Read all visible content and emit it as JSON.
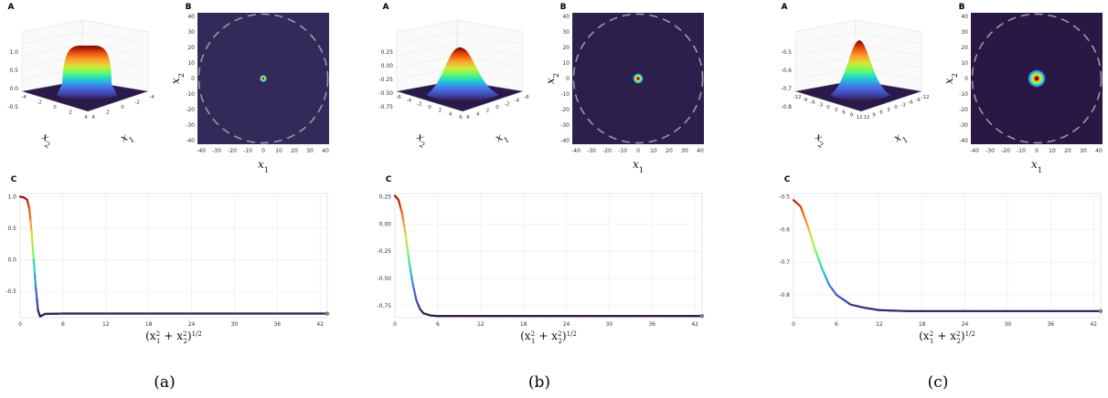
{
  "panels": [
    {
      "caption": "(a)",
      "letters": {
        "a": "A",
        "b": "B",
        "c": "C"
      },
      "surface_zticks": [
        "1.0",
        "0.5",
        "0.0",
        "-0.5"
      ],
      "surface_x2_ticks": [
        "-4",
        "-2",
        "0",
        "2",
        "4"
      ],
      "surface_x1_ticks": [
        "-4",
        "-2",
        "0",
        "2",
        "4"
      ],
      "heat_ticks": [
        "40",
        "30",
        "20",
        "10",
        "0",
        "-10",
        "-20",
        "-30",
        "-40"
      ],
      "heat_xticks": [
        "-40",
        "-30",
        "-20",
        "-10",
        "0",
        "10",
        "20",
        "30",
        "40"
      ],
      "spot_radius_units": 1.5,
      "spot_glow_units": 2.5,
      "chart_data": {
        "type": "line",
        "profile": "plateau",
        "xlim": [
          0,
          43
        ],
        "ylim": [
          -0.92,
          1.05
        ],
        "xticks": [
          "0",
          "6",
          "12",
          "18",
          "24",
          "30",
          "36",
          "42"
        ],
        "yticks": [
          {
            "value": 1.0,
            "label": "1.0"
          },
          {
            "value": 0.5,
            "label": "0.5"
          },
          {
            "value": 0.0,
            "label": "0.0"
          },
          {
            "value": -0.5,
            "label": "-0.5"
          }
        ],
        "points": [
          [
            0,
            1.0
          ],
          [
            0.5,
            0.99
          ],
          [
            1.0,
            0.95
          ],
          [
            1.3,
            0.8
          ],
          [
            1.6,
            0.45
          ],
          [
            1.9,
            0.0
          ],
          [
            2.2,
            -0.45
          ],
          [
            2.5,
            -0.8
          ],
          [
            2.8,
            -0.9
          ],
          [
            3.5,
            -0.86
          ],
          [
            6,
            -0.855
          ],
          [
            43,
            -0.855
          ]
        ],
        "end_value": -0.855
      }
    },
    {
      "caption": "(b)",
      "letters": {
        "a": "A",
        "b": "B",
        "c": "C"
      },
      "surface_zticks": [
        "0.25",
        "0.00",
        "-0.25",
        "-0.50",
        "-0.75"
      ],
      "surface_x2_ticks": [
        "-6",
        "-4",
        "-2",
        "0",
        "2",
        "4",
        "6"
      ],
      "surface_x1_ticks": [
        "-6",
        "-4",
        "-2",
        "0",
        "2",
        "4",
        "6"
      ],
      "heat_ticks": [
        "40",
        "30",
        "20",
        "10",
        "0",
        "-10",
        "-20",
        "-30",
        "-40"
      ],
      "heat_xticks": [
        "-40",
        "-30",
        "-20",
        "-10",
        "0",
        "10",
        "20",
        "30",
        "40"
      ],
      "spot_radius_units": 2,
      "spot_glow_units": 3.5,
      "chart_data": {
        "type": "line",
        "profile": "gaussian",
        "xlim": [
          0,
          43
        ],
        "ylim": [
          -0.86,
          0.28
        ],
        "xticks": [
          "0",
          "6",
          "12",
          "18",
          "24",
          "30",
          "36",
          "42"
        ],
        "yticks": [
          {
            "value": 0.25,
            "label": "0.25"
          },
          {
            "value": 0.0,
            "label": "0.00"
          },
          {
            "value": -0.25,
            "label": "-0.25"
          },
          {
            "value": -0.5,
            "label": "-0.50"
          },
          {
            "value": -0.75,
            "label": "-0.75"
          }
        ],
        "points": [
          [
            0,
            0.26
          ],
          [
            0.5,
            0.22
          ],
          [
            1,
            0.1
          ],
          [
            1.5,
            -0.1
          ],
          [
            2,
            -0.35
          ],
          [
            2.5,
            -0.55
          ],
          [
            3,
            -0.7
          ],
          [
            3.5,
            -0.78
          ],
          [
            4,
            -0.82
          ],
          [
            5,
            -0.84
          ],
          [
            6,
            -0.845
          ],
          [
            43,
            -0.845
          ]
        ],
        "end_value": -0.845
      }
    },
    {
      "caption": "(c)",
      "letters": {
        "a": "A",
        "b": "B",
        "c": "C"
      },
      "surface_zticks": [
        "-0.5",
        "-0.6",
        "-0.7",
        "-0.8"
      ],
      "surface_x2_ticks": [
        "-12",
        "-9",
        "-6",
        "-3",
        "0",
        "3",
        "6",
        "9",
        "12"
      ],
      "surface_x1_ticks": [
        "-12",
        "-9",
        "-6",
        "-3",
        "0",
        "3",
        "6",
        "9",
        "12"
      ],
      "heat_ticks": [
        "40",
        "30",
        "20",
        "10",
        "0",
        "-10",
        "-20",
        "-30",
        "-40"
      ],
      "heat_xticks": [
        "-40",
        "-30",
        "-20",
        "-10",
        "0",
        "10",
        "20",
        "30",
        "40"
      ],
      "spot_radius_units": 3,
      "spot_glow_units": 6,
      "chart_data": {
        "type": "line",
        "profile": "slow",
        "xlim": [
          0,
          43
        ],
        "ylim": [
          -0.87,
          -0.49
        ],
        "xticks": [
          "0",
          "6",
          "12",
          "18",
          "24",
          "30",
          "36",
          "42"
        ],
        "yticks": [
          {
            "value": -0.5,
            "label": "-0.5"
          },
          {
            "value": -0.6,
            "label": "-0.6"
          },
          {
            "value": -0.7,
            "label": "-0.7"
          },
          {
            "value": -0.8,
            "label": "-0.8"
          }
        ],
        "points": [
          [
            0,
            -0.51
          ],
          [
            1,
            -0.53
          ],
          [
            2,
            -0.59
          ],
          [
            3,
            -0.66
          ],
          [
            4,
            -0.72
          ],
          [
            5,
            -0.77
          ],
          [
            6,
            -0.8
          ],
          [
            8,
            -0.83
          ],
          [
            10,
            -0.84
          ],
          [
            12,
            -0.847
          ],
          [
            16,
            -0.85
          ],
          [
            43,
            -0.85
          ]
        ],
        "end_value": -0.85
      }
    }
  ],
  "labels": {
    "x1": "x",
    "x1_sub": "1",
    "x2": "x",
    "x2_sub": "2",
    "radial": "(x",
    "radial_mid": "+ x",
    "radial_end": ")",
    "radial_sub1": "1",
    "radial_sub2": "2",
    "radial_sup": "2",
    "radial_exp": "1/2"
  },
  "colors": {
    "heat_bg_a": "#332a5a",
    "heat_bg_b": "#2d1f4c",
    "heat_bg_c": "#2a1844",
    "dashed_circle": "#9a96a6",
    "grid": "#ebebeb",
    "endpoint": "#7f7f7f"
  }
}
